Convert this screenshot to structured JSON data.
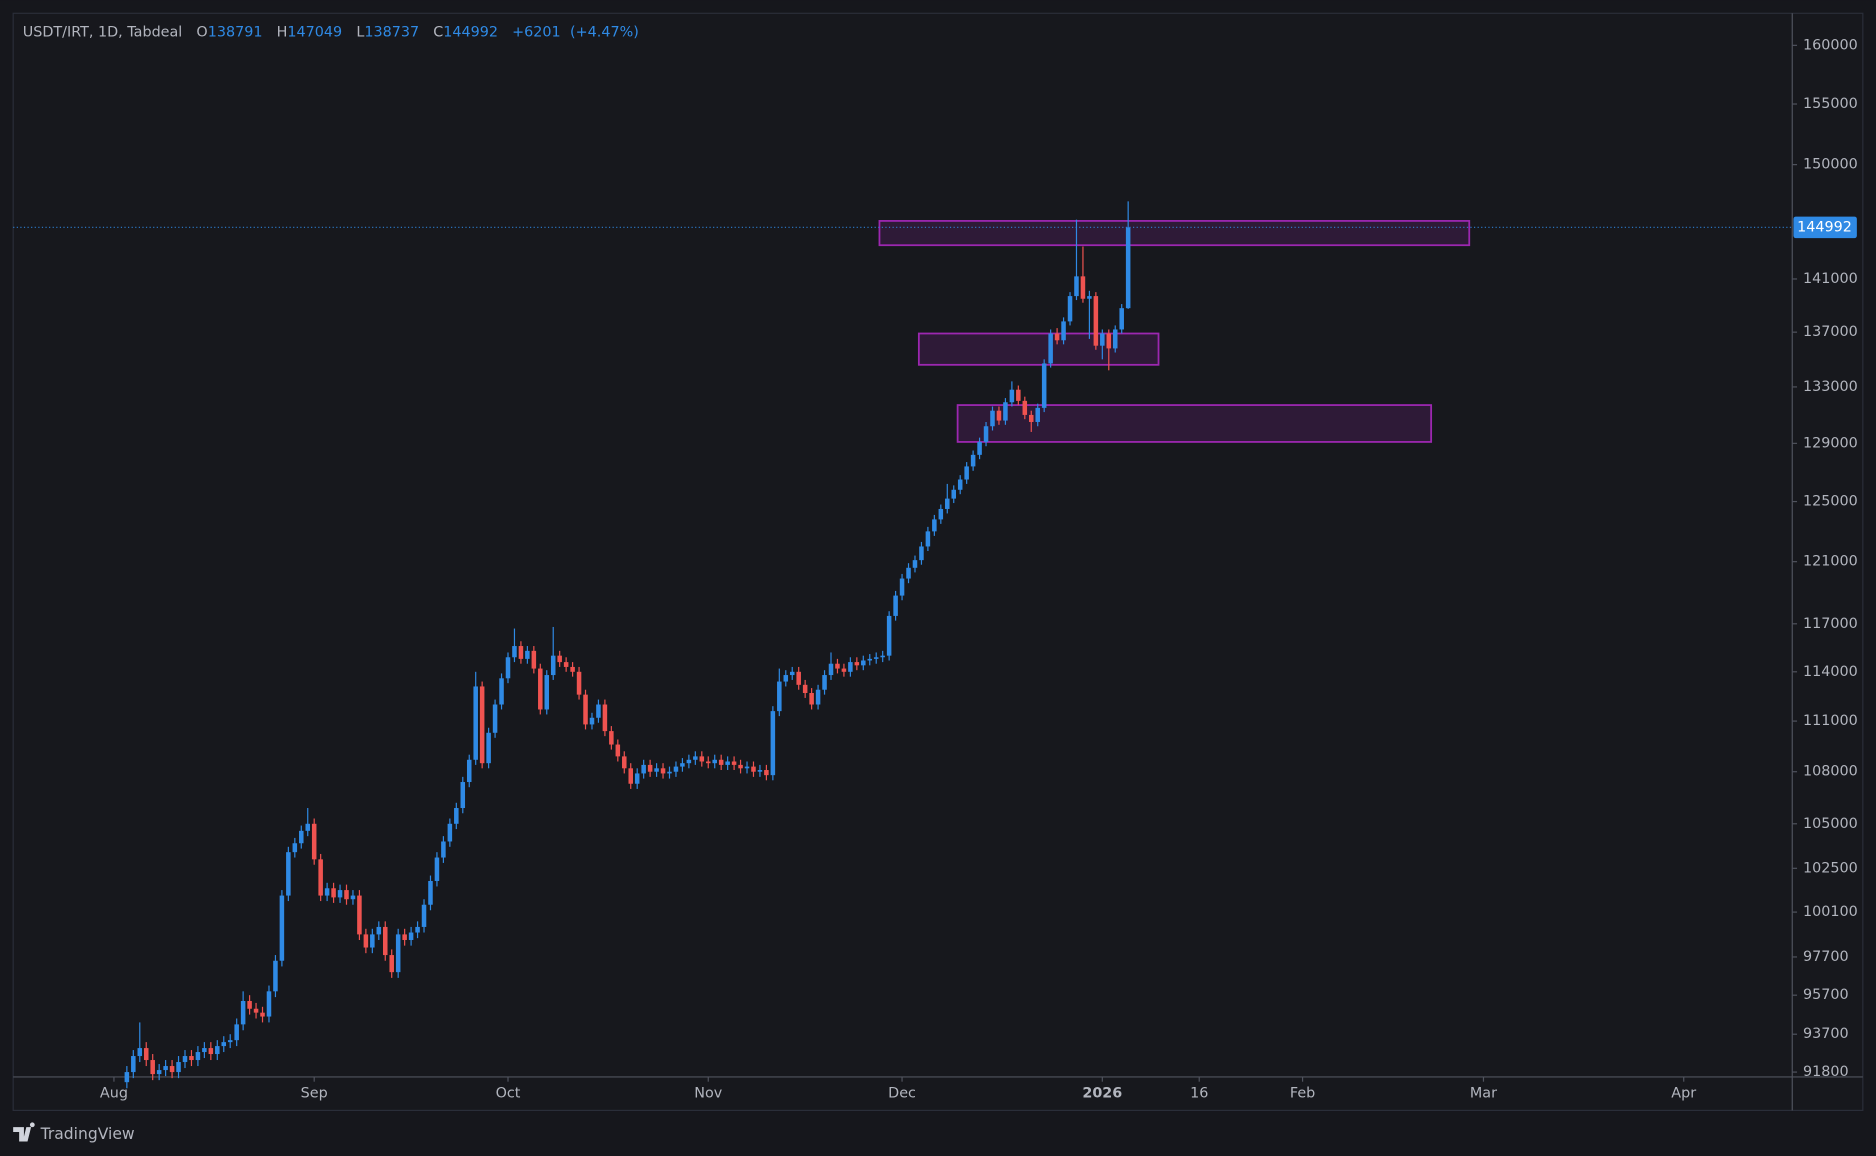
{
  "chart_data": {
    "type": "candlestick",
    "title": "USDT/IRT, 1D, Tabdeal",
    "ohlc_labels": [
      "O",
      "H",
      "L",
      "C"
    ],
    "change": "+6201",
    "change_percent": "(+4.47%)",
    "branding": "TradingView",
    "up_color": "#2f8ae5",
    "down_color": "#ef5350",
    "zone_color": "#9c27b0",
    "log_scale": true,
    "ylim": [
      91560,
      162800
    ],
    "yticks": [
      91800,
      93700,
      95700,
      97700,
      100100,
      102500,
      105000,
      108000,
      111000,
      114000,
      117000,
      121000,
      125000,
      129000,
      133000,
      137000,
      141000,
      150000,
      155000,
      160000
    ],
    "xlim": [
      -15.6,
      259.8
    ],
    "xticks": [
      {
        "value": 0,
        "label": "Aug"
      },
      {
        "value": 31,
        "label": "Sep"
      },
      {
        "value": 61,
        "label": "Oct"
      },
      {
        "value": 92,
        "label": "Nov"
      },
      {
        "value": 122,
        "label": "Dec"
      },
      {
        "value": 153,
        "label": "2026"
      },
      {
        "value": 168,
        "label": "16"
      },
      {
        "value": 184,
        "label": "Feb"
      },
      {
        "value": 212,
        "label": "Mar"
      },
      {
        "value": 243,
        "label": "Apr"
      }
    ],
    "zones": [
      {
        "top": 145500,
        "bottom": 143600,
        "start": 118.5,
        "end": 209.8
      },
      {
        "top": 136900,
        "bottom": 134600,
        "start": 124.6,
        "end": 161.7
      },
      {
        "top": 131700,
        "bottom": 129100,
        "start": 130.6,
        "end": 203.9
      }
    ],
    "x": [
      2,
      3,
      4,
      5,
      6,
      7,
      8,
      9,
      10,
      11,
      12,
      13,
      14,
      15,
      16,
      17,
      18,
      19,
      20,
      21,
      22,
      23,
      24,
      25,
      26,
      27,
      28,
      29,
      30,
      31,
      32,
      33,
      34,
      35,
      36,
      37,
      38,
      39,
      40,
      41,
      42,
      43,
      44,
      45,
      46,
      47,
      48,
      49,
      50,
      51,
      52,
      53,
      54,
      55,
      56,
      57,
      58,
      59,
      60,
      61,
      62,
      63,
      64,
      65,
      66,
      67,
      68,
      69,
      70,
      71,
      72,
      73,
      74,
      75,
      76,
      77,
      78,
      79,
      80,
      81,
      82,
      83,
      84,
      85,
      86,
      87,
      88,
      89,
      90,
      91,
      92,
      93,
      94,
      95,
      96,
      97,
      98,
      99,
      100,
      101,
      102,
      103,
      104,
      105,
      106,
      107,
      108,
      109,
      110,
      111,
      112,
      113,
      114,
      115,
      116,
      117,
      118,
      119,
      120,
      121,
      122,
      123,
      124,
      125,
      126,
      127,
      128,
      129,
      130,
      131,
      132,
      133,
      134,
      135,
      136,
      137,
      138,
      139,
      140,
      141,
      142,
      143,
      144,
      145,
      146,
      147,
      148,
      149,
      150,
      151,
      152,
      153,
      154,
      155,
      156,
      157
    ],
    "open": [
      91300,
      91800,
      92600,
      93000,
      92400,
      91700,
      91900,
      92100,
      91800,
      92300,
      92600,
      92400,
      92800,
      93000,
      92700,
      93100,
      93300,
      93400,
      94200,
      95400,
      95000,
      94800,
      94600,
      95900,
      97500,
      101000,
      103400,
      103900,
      104600,
      105000,
      103000,
      101000,
      101400,
      100900,
      101300,
      100800,
      101000,
      98900,
      98200,
      98900,
      99300,
      97800,
      96900,
      98900,
      98600,
      99000,
      99300,
      100500,
      101800,
      103100,
      104000,
      105000,
      105900,
      107400,
      108700,
      113100,
      108500,
      110300,
      112000,
      113600,
      114900,
      115600,
      114800,
      115300,
      114200,
      111700,
      113800,
      115000,
      114600,
      114300,
      114000,
      112600,
      110800,
      111200,
      112000,
      110400,
      109600,
      108900,
      108200,
      107300,
      107900,
      108400,
      108000,
      108200,
      107900,
      108000,
      108300,
      108500,
      108700,
      108900,
      108600,
      108500,
      108700,
      108400,
      108600,
      108400,
      108200,
      108300,
      108000,
      108100,
      107800,
      111600,
      113400,
      113800,
      114000,
      113200,
      112700,
      112000,
      112900,
      113800,
      114500,
      114200,
      114000,
      114600,
      114400,
      114700,
      114800,
      114900,
      115000,
      117500,
      118800,
      119900,
      120600,
      121100,
      122000,
      123000,
      123800,
      124500,
      125200,
      125800,
      126500,
      127400,
      128200,
      129100,
      130200,
      131300,
      130600,
      131900,
      132800,
      132000,
      131000,
      130500,
      131500,
      134700,
      136900,
      136400,
      137800,
      139700,
      141200,
      139500,
      139700,
      136000,
      136900,
      135800,
      137200,
      138791
    ],
    "high": [
      92100,
      92900,
      94300,
      93300,
      92700,
      92200,
      92400,
      92400,
      92600,
      92900,
      92900,
      93100,
      93300,
      93300,
      93400,
      93600,
      93700,
      94500,
      95900,
      95700,
      95300,
      95100,
      96200,
      97800,
      101300,
      103700,
      104200,
      104900,
      105900,
      105300,
      103300,
      101700,
      101700,
      101600,
      101600,
      101300,
      101300,
      99200,
      99200,
      99600,
      99600,
      98100,
      99200,
      99200,
      99300,
      99600,
      100800,
      102100,
      103400,
      104300,
      105300,
      106200,
      107700,
      109000,
      114000,
      113400,
      110600,
      112300,
      113900,
      115200,
      116700,
      115900,
      115600,
      115600,
      114500,
      114100,
      116800,
      115300,
      114900,
      114600,
      114300,
      112900,
      111500,
      112300,
      112300,
      110700,
      109900,
      109200,
      108500,
      108200,
      108700,
      108700,
      108500,
      108500,
      108300,
      108600,
      108800,
      109000,
      109200,
      109200,
      108900,
      109000,
      109000,
      108900,
      108900,
      108700,
      108600,
      108600,
      108400,
      108400,
      111900,
      114200,
      114100,
      114300,
      114300,
      113500,
      113000,
      113200,
      114100,
      115200,
      114800,
      114500,
      114900,
      114900,
      115000,
      115100,
      115200,
      115300,
      117800,
      119100,
      120200,
      120900,
      121400,
      122300,
      123300,
      124100,
      124800,
      126200,
      126100,
      126800,
      127700,
      128500,
      129400,
      130500,
      131600,
      131600,
      132200,
      133400,
      133100,
      132300,
      131300,
      131800,
      135000,
      137200,
      137300,
      138100,
      140000,
      145600,
      143500,
      140100,
      140000,
      137200,
      137200,
      137500,
      139100,
      147049
    ],
    "low": [
      91000,
      91500,
      92300,
      92100,
      91400,
      91400,
      91600,
      91500,
      91500,
      92000,
      92100,
      92100,
      92500,
      92400,
      92400,
      92800,
      93000,
      93100,
      93900,
      94700,
      94500,
      94300,
      94300,
      95600,
      97200,
      100700,
      103100,
      103600,
      104300,
      102700,
      100700,
      100700,
      100600,
      100600,
      100500,
      100500,
      98600,
      97900,
      97900,
      98600,
      97500,
      96600,
      96600,
      98300,
      98300,
      98700,
      99000,
      100200,
      101500,
      102800,
      103700,
      104700,
      105600,
      107100,
      108400,
      108200,
      108200,
      110000,
      111700,
      113300,
      114600,
      114500,
      114500,
      113900,
      111400,
      111400,
      113500,
      114300,
      114000,
      113700,
      112300,
      110500,
      110500,
      110900,
      110100,
      109300,
      108600,
      107900,
      107000,
      107000,
      107600,
      107700,
      107700,
      107600,
      107600,
      107700,
      108000,
      108200,
      108400,
      108300,
      108200,
      108200,
      108100,
      108100,
      108100,
      107900,
      107900,
      107700,
      107700,
      107500,
      107500,
      111300,
      113100,
      113500,
      112900,
      112400,
      111700,
      111700,
      112600,
      113500,
      113900,
      113700,
      113700,
      114100,
      114100,
      114400,
      114500,
      114600,
      114700,
      117200,
      118500,
      119600,
      120300,
      120800,
      121700,
      122700,
      123500,
      124200,
      124900,
      125500,
      126200,
      127100,
      127900,
      128800,
      129900,
      130300,
      130300,
      131600,
      131700,
      130700,
      129800,
      130200,
      131200,
      134400,
      136100,
      136100,
      137500,
      139400,
      139200,
      136500,
      135700,
      135000,
      134200,
      135500,
      136900,
      138737
    ],
    "close": [
      91800,
      92600,
      93000,
      92400,
      91700,
      91900,
      92100,
      91800,
      92300,
      92600,
      92400,
      92800,
      93000,
      92700,
      93100,
      93300,
      93400,
      94200,
      95400,
      95000,
      94800,
      94600,
      95900,
      97500,
      101000,
      103400,
      103900,
      104600,
      105000,
      103000,
      101000,
      101400,
      100900,
      101300,
      100800,
      101000,
      98900,
      98200,
      98900,
      99300,
      97800,
      96900,
      98900,
      98600,
      99000,
      99300,
      100500,
      101800,
      103100,
      104000,
      105000,
      105900,
      107400,
      108700,
      113100,
      108500,
      110300,
      112000,
      113600,
      114900,
      115600,
      114800,
      115300,
      114200,
      111700,
      113800,
      115000,
      114600,
      114300,
      114000,
      112600,
      110800,
      111200,
      112000,
      110400,
      109600,
      108900,
      108200,
      107300,
      107900,
      108400,
      108000,
      108200,
      107900,
      108000,
      108300,
      108500,
      108700,
      108900,
      108600,
      108500,
      108700,
      108400,
      108600,
      108400,
      108200,
      108300,
      108000,
      108100,
      107800,
      111600,
      113400,
      113800,
      114000,
      113200,
      112700,
      112000,
      112900,
      113800,
      114500,
      114200,
      114000,
      114600,
      114400,
      114700,
      114800,
      114900,
      115000,
      117500,
      118800,
      119900,
      120600,
      121100,
      122000,
      123000,
      123800,
      124500,
      125200,
      125800,
      126500,
      127400,
      128200,
      129100,
      130200,
      131300,
      130600,
      131900,
      132800,
      132000,
      131000,
      130500,
      131500,
      134700,
      136900,
      136400,
      137800,
      139700,
      141200,
      139500,
      139700,
      136000,
      136900,
      135800,
      137200,
      138791,
      144992
    ]
  }
}
